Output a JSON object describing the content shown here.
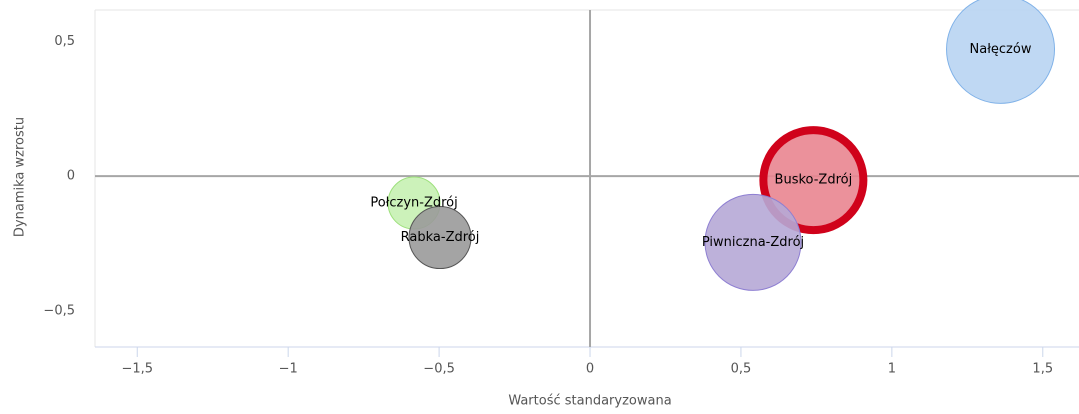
{
  "chart_data": {
    "type": "bubble",
    "x_label": "Wartość standaryzowana",
    "y_label": "Dynamika wzrostu",
    "xlim": [
      -1.64,
      1.62
    ],
    "ylim": [
      -0.634,
      0.616
    ],
    "xticks": [
      {
        "value": -1.5,
        "label": "−1,5"
      },
      {
        "value": -1,
        "label": "−1"
      },
      {
        "value": -0.5,
        "label": "−0,5"
      },
      0,
      {
        "value": 0.5,
        "label": "0,5"
      },
      1,
      {
        "value": 1.5,
        "label": "1,5"
      }
    ],
    "yticks": [
      {
        "value": -0.5,
        "label": "−0,5"
      },
      0,
      {
        "value": 0.5,
        "label": "0,5"
      }
    ],
    "zero_lines": true,
    "series": [
      {
        "name": "Nałęczów",
        "color": "#b8d4f2",
        "border_color": "#80b2e8",
        "border_width": 1,
        "x": [
          1.36
        ],
        "values": [
          0.47
        ],
        "sizes": [
          54
        ]
      },
      {
        "name": "Busko-Zdrój",
        "color": "#e98590",
        "border_color": "#d0021b",
        "border_width": 8,
        "x": [
          0.74
        ],
        "values": [
          -0.015
        ],
        "sizes": [
          50
        ]
      },
      {
        "name": "Piwniczna-Zdrój",
        "color": "#b6a8d6",
        "border_color": "#8e7fd2",
        "border_width": 1,
        "x": [
          0.54
        ],
        "values": [
          -0.246
        ],
        "sizes": [
          48
        ]
      },
      {
        "name": "Połczyn-Zdrój",
        "color": "#c6f1b3",
        "border_color": "#9de07c",
        "border_width": 1,
        "x": [
          -0.583
        ],
        "values": [
          -0.1
        ],
        "sizes": [
          26
        ]
      },
      {
        "name": "Rabka-Zdrój",
        "color": "#9a9a9a",
        "border_color": "#555555",
        "border_width": 1,
        "x": [
          -0.497
        ],
        "values": [
          -0.228
        ],
        "sizes": [
          31
        ]
      }
    ]
  }
}
